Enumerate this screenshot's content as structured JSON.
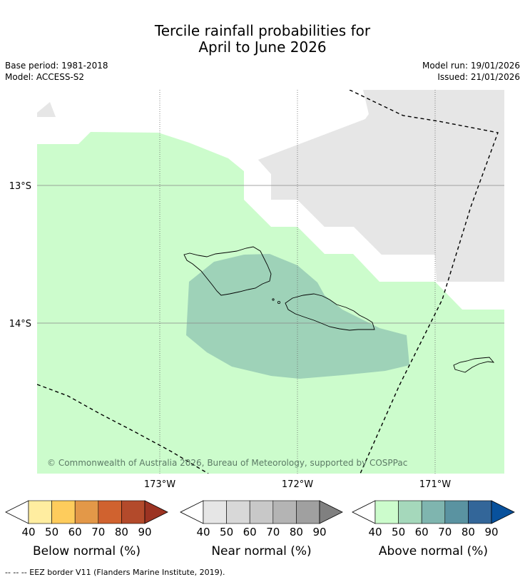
{
  "header": {
    "title_line1": "Tercile rainfall probabilities for",
    "title_line2": "April to June 2026",
    "base_period": "Base period: 1981-2018",
    "model": "Model: ACCESS-S2",
    "model_run": "Model run: 19/01/2026",
    "issued": "Issued: 21/01/2026"
  },
  "map": {
    "lat_labels": [
      "13°S",
      "14°S"
    ],
    "lon_labels": [
      "173°W",
      "172°W",
      "171°W"
    ],
    "copyright": "© Commonwealth of Australia 2026, Bureau of Meteorology, supported by COSPPac",
    "colors": {
      "above_40_50": "#ccfccc",
      "above_50_60": "#9ed2b8",
      "near_normal_gray": "#e6e6e6",
      "land_outline": "#000000"
    }
  },
  "legends": [
    {
      "label": "Below normal (%)",
      "ticks": [
        "40",
        "50",
        "60",
        "70",
        "80",
        "90"
      ],
      "colors": [
        "#ffffff",
        "#ffeda0",
        "#fecc5c",
        "#e39848",
        "#d0622f",
        "#b34a2b",
        "#9c3322"
      ]
    },
    {
      "label": "Near normal (%)",
      "ticks": [
        "40",
        "50",
        "60",
        "70",
        "80",
        "90"
      ],
      "colors": [
        "#ffffff",
        "#e6e6e6",
        "#d8d8d8",
        "#c8c8c8",
        "#b4b4b4",
        "#a0a0a0",
        "#808080"
      ]
    },
    {
      "label": "Above normal (%)",
      "ticks": [
        "40",
        "50",
        "60",
        "70",
        "80",
        "90"
      ],
      "colors": [
        "#ffffff",
        "#ccfccc",
        "#a5d8bb",
        "#7fb5af",
        "#5a93a1",
        "#336699",
        "#08519c"
      ]
    }
  ],
  "footnote": "--  --  -- EEZ border V11 (Flanders Marine Institute, 2019)."
}
